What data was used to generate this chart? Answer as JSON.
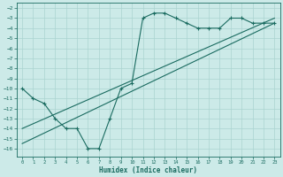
{
  "xlabel": "Humidex (Indice chaleur)",
  "bg_color": "#cceae8",
  "grid_color": "#aad4d0",
  "line_color": "#1a6b60",
  "x_ticks": [
    0,
    1,
    2,
    3,
    4,
    5,
    6,
    7,
    8,
    9,
    10,
    11,
    12,
    13,
    14,
    15,
    16,
    17,
    18,
    19,
    20,
    21,
    22,
    23
  ],
  "y_ticks": [
    -2,
    -3,
    -4,
    -5,
    -6,
    -7,
    -8,
    -9,
    -10,
    -11,
    -12,
    -13,
    -14,
    -15,
    -16
  ],
  "ylim": [
    -16.8,
    -1.5
  ],
  "xlim": [
    -0.5,
    23.5
  ],
  "line1_x": [
    0,
    1,
    2,
    3,
    4,
    5,
    6,
    7,
    8,
    9,
    10,
    11,
    12,
    13,
    14,
    15,
    16,
    17,
    18,
    19,
    20,
    21,
    22,
    23
  ],
  "line1_y": [
    -10,
    -11,
    -11.5,
    -13,
    -14,
    -14,
    -16,
    -16,
    -13,
    -10,
    -9.5,
    -3,
    -2.5,
    -2.5,
    -3,
    -3.5,
    -4,
    -4,
    -4,
    -3,
    -3,
    -3.5,
    -3.5,
    -3.5
  ],
  "line2_x": [
    0,
    23
  ],
  "line2_y": [
    -14.0,
    -3.0
  ],
  "line3_x": [
    0,
    23
  ],
  "line3_y": [
    -15.5,
    -3.5
  ]
}
